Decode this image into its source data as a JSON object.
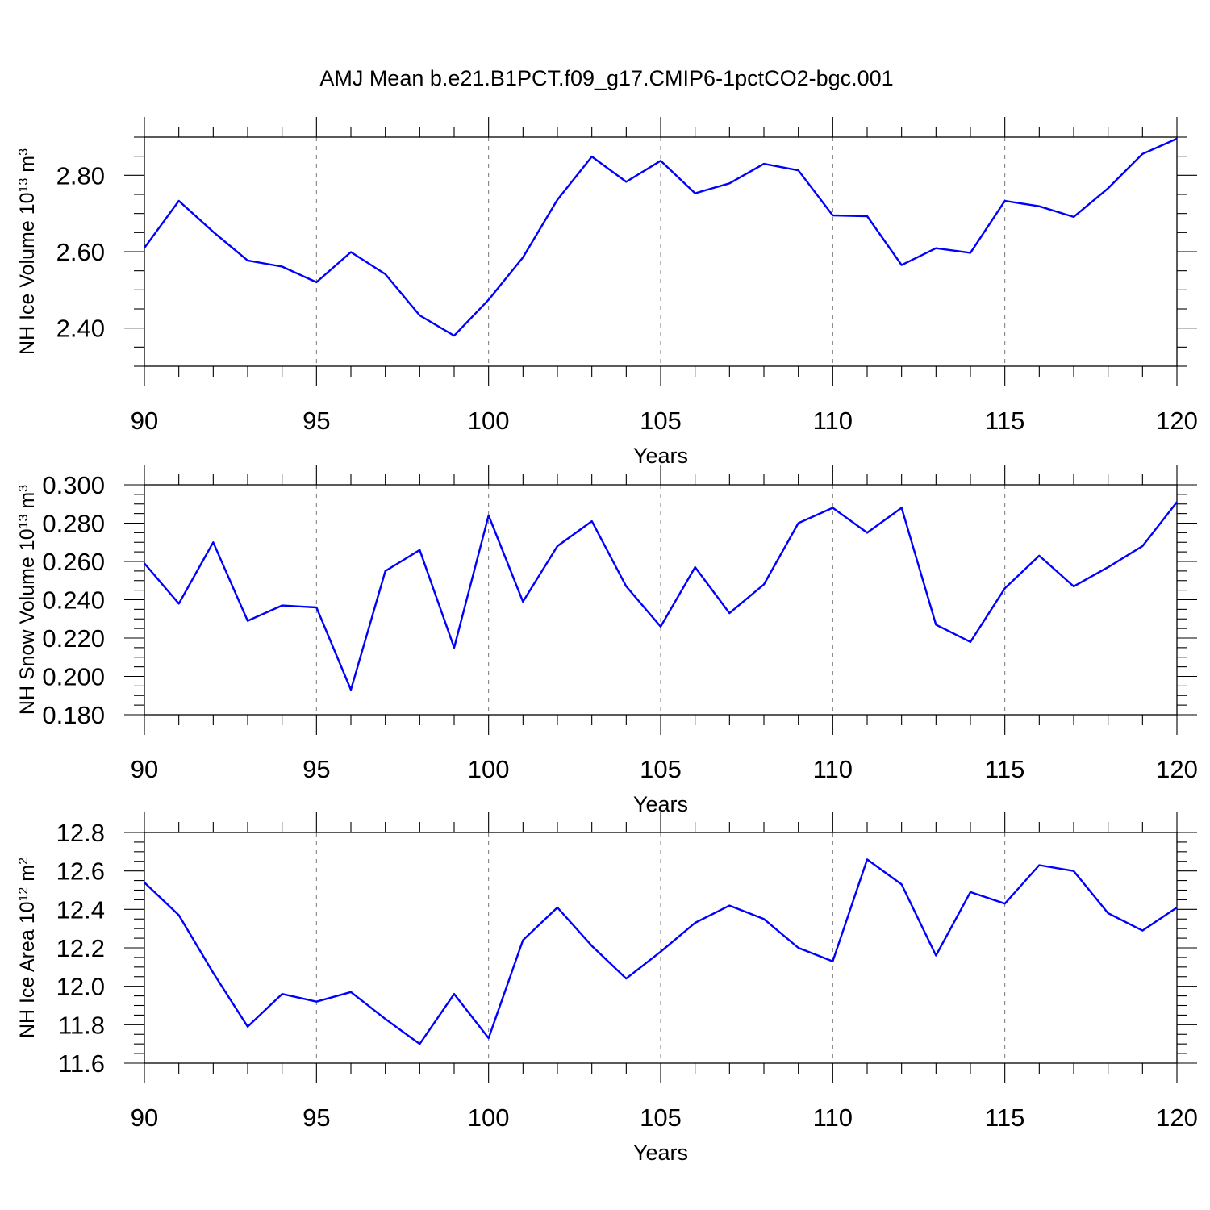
{
  "title": "AMJ Mean b.e21.B1PCT.f09_g17.CMIP6-1pctCO2-bgc.001",
  "colors": {
    "series": "#0000ff",
    "axis": "#000000",
    "grid": "#777777"
  },
  "chart_data": [
    {
      "type": "line",
      "xlabel": "Years",
      "ylabel_main": "NH Ice Volume 10",
      "ylabel_exp": "13",
      "ylabel_unit": " m",
      "ylabel_unit_exp": "3",
      "xlim": [
        90,
        120
      ],
      "ylim": [
        2.3,
        2.9
      ],
      "xticks": [
        90,
        95,
        100,
        105,
        110,
        115,
        120
      ],
      "xtick_labels": [
        "90",
        "95",
        "100",
        "105",
        "110",
        "115",
        "120"
      ],
      "yticks": [
        2.4,
        2.6,
        2.8
      ],
      "ytick_labels": [
        "2.40",
        "2.60",
        "2.80"
      ],
      "grid_x": [
        95,
        100,
        105,
        110,
        115
      ],
      "x": [
        90,
        91,
        92,
        93,
        94,
        95,
        96,
        97,
        98,
        99,
        100,
        101,
        102,
        103,
        104,
        105,
        106,
        107,
        108,
        109,
        110,
        111,
        112,
        113,
        114,
        115,
        116,
        117,
        118,
        119,
        120
      ],
      "values": [
        2.61,
        2.733,
        2.652,
        2.577,
        2.561,
        2.52,
        2.599,
        2.541,
        2.433,
        2.38,
        2.474,
        2.585,
        2.736,
        2.849,
        2.783,
        2.838,
        2.753,
        2.779,
        2.83,
        2.813,
        2.695,
        2.693,
        2.565,
        2.609,
        2.597,
        2.733,
        2.719,
        2.691,
        2.766,
        2.856,
        2.896
      ]
    },
    {
      "type": "line",
      "xlabel": "Years",
      "ylabel_main": "NH Snow Volume 10",
      "ylabel_exp": "13",
      "ylabel_unit": " m",
      "ylabel_unit_exp": "3",
      "xlim": [
        90,
        120
      ],
      "ylim": [
        0.18,
        0.3
      ],
      "xticks": [
        90,
        95,
        100,
        105,
        110,
        115,
        120
      ],
      "xtick_labels": [
        "90",
        "95",
        "100",
        "105",
        "110",
        "115",
        "120"
      ],
      "yticks": [
        0.18,
        0.2,
        0.22,
        0.24,
        0.26,
        0.28,
        0.3
      ],
      "ytick_labels": [
        "0.180",
        "0.200",
        "0.220",
        "0.240",
        "0.260",
        "0.280",
        "0.300"
      ],
      "grid_x": [
        95,
        100,
        105,
        110,
        115
      ],
      "x": [
        90,
        91,
        92,
        93,
        94,
        95,
        96,
        97,
        98,
        99,
        100,
        101,
        102,
        103,
        104,
        105,
        106,
        107,
        108,
        109,
        110,
        111,
        112,
        113,
        114,
        115,
        116,
        117,
        118,
        119,
        120
      ],
      "values": [
        0.259,
        0.238,
        0.27,
        0.229,
        0.237,
        0.236,
        0.193,
        0.255,
        0.266,
        0.215,
        0.284,
        0.239,
        0.268,
        0.281,
        0.247,
        0.226,
        0.257,
        0.233,
        0.248,
        0.28,
        0.288,
        0.275,
        0.288,
        0.227,
        0.218,
        0.246,
        0.263,
        0.247,
        0.257,
        0.268,
        0.291
      ]
    },
    {
      "type": "line",
      "xlabel": "Years",
      "ylabel_main": "NH Ice Area 10",
      "ylabel_exp": "12",
      "ylabel_unit": " m",
      "ylabel_unit_exp": "2",
      "xlim": [
        90,
        120
      ],
      "ylim": [
        11.6,
        12.8
      ],
      "xticks": [
        90,
        95,
        100,
        105,
        110,
        115,
        120
      ],
      "xtick_labels": [
        "90",
        "95",
        "100",
        "105",
        "110",
        "115",
        "120"
      ],
      "yticks": [
        11.6,
        11.8,
        12.0,
        12.2,
        12.4,
        12.6,
        12.8
      ],
      "ytick_labels": [
        "11.6",
        "11.8",
        "12.0",
        "12.2",
        "12.4",
        "12.6",
        "12.8"
      ],
      "grid_x": [
        95,
        100,
        105,
        110,
        115
      ],
      "x": [
        90,
        91,
        92,
        93,
        94,
        95,
        96,
        97,
        98,
        99,
        100,
        101,
        102,
        103,
        104,
        105,
        106,
        107,
        108,
        109,
        110,
        111,
        112,
        113,
        114,
        115,
        116,
        117,
        118,
        119,
        120
      ],
      "values": [
        12.54,
        12.37,
        12.07,
        11.79,
        11.96,
        11.92,
        11.97,
        11.83,
        11.7,
        11.96,
        11.73,
        12.24,
        12.41,
        12.21,
        12.04,
        12.18,
        12.33,
        12.42,
        12.35,
        12.2,
        12.13,
        12.66,
        12.53,
        12.16,
        12.49,
        12.43,
        12.63,
        12.6,
        12.38,
        12.29,
        12.41
      ]
    }
  ]
}
